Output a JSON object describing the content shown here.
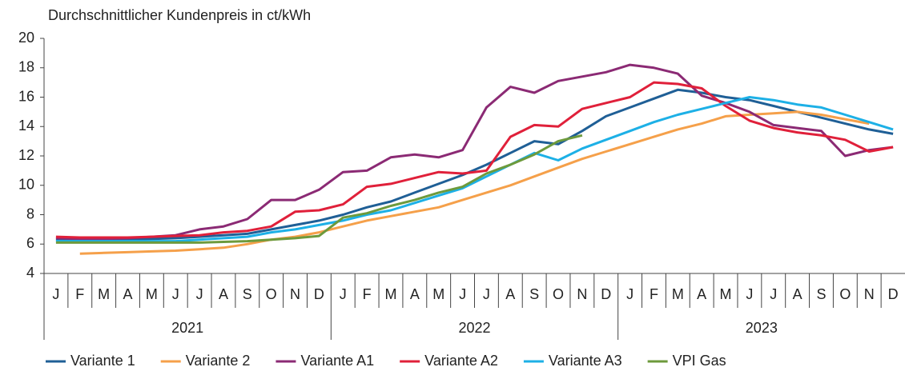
{
  "chart_data": {
    "type": "line",
    "y_label": "Durchschnittlicher Kundenpreis in ct/kWh",
    "categories": [
      "J",
      "F",
      "M",
      "A",
      "M",
      "J",
      "J",
      "A",
      "S",
      "O",
      "N",
      "D",
      "J",
      "F",
      "M",
      "A",
      "M",
      "J",
      "J",
      "A",
      "S",
      "O",
      "N",
      "D",
      "J",
      "F",
      "M",
      "A",
      "M",
      "J",
      "J",
      "A",
      "S",
      "O",
      "N",
      "D"
    ],
    "x_groups": [
      "2021",
      "2022",
      "2023"
    ],
    "ylim": [
      4,
      20
    ],
    "yticks": [
      4,
      6,
      8,
      10,
      12,
      14,
      16,
      18,
      20
    ],
    "grid": false,
    "legend": "bottom",
    "series": [
      {
        "name": "Variante 1",
        "color": "#1f5f96",
        "values": [
          6.3,
          6.3,
          6.3,
          6.3,
          6.35,
          6.4,
          6.5,
          6.6,
          6.7,
          7.0,
          7.3,
          7.6,
          8.0,
          8.5,
          8.9,
          9.5,
          10.1,
          10.7,
          11.4,
          12.2,
          13.0,
          12.8,
          13.7,
          14.7,
          15.3,
          15.9,
          16.5,
          16.3,
          16.0,
          15.8,
          15.4,
          15.0,
          14.6,
          14.2,
          13.8,
          13.5
        ]
      },
      {
        "name": "Variante 2",
        "color": "#f5a04a",
        "values": [
          null,
          5.35,
          5.4,
          5.45,
          5.5,
          5.55,
          5.65,
          5.75,
          6.0,
          6.3,
          6.5,
          6.8,
          7.2,
          7.6,
          7.9,
          8.2,
          8.5,
          9.0,
          9.5,
          10.0,
          10.6,
          11.2,
          11.8,
          12.3,
          12.8,
          13.3,
          13.8,
          14.2,
          14.7,
          14.8,
          14.9,
          15.0,
          14.8,
          14.5,
          14.2,
          null
        ]
      },
      {
        "name": "Variante A1",
        "color": "#8b2a74",
        "values": [
          6.4,
          6.35,
          6.35,
          6.4,
          6.5,
          6.6,
          7.0,
          7.2,
          7.7,
          9.0,
          9.0,
          9.7,
          10.9,
          11.0,
          11.9,
          12.1,
          11.9,
          12.4,
          15.3,
          16.7,
          16.3,
          17.1,
          17.4,
          17.7,
          18.2,
          18.0,
          17.6,
          16.1,
          15.6,
          15.0,
          14.1,
          13.9,
          13.7,
          12.0,
          12.4,
          12.6
        ]
      },
      {
        "name": "Variante A2",
        "color": "#e0203a",
        "values": [
          6.5,
          6.45,
          6.45,
          6.45,
          6.5,
          6.55,
          6.6,
          6.8,
          6.9,
          7.2,
          8.2,
          8.3,
          8.7,
          9.9,
          10.1,
          10.5,
          10.9,
          10.8,
          11.0,
          13.3,
          14.1,
          14.0,
          15.2,
          15.6,
          16.0,
          17.0,
          16.9,
          16.6,
          15.4,
          14.4,
          13.9,
          13.6,
          13.4,
          13.1,
          12.3,
          12.6
        ]
      },
      {
        "name": "Variante A3",
        "color": "#1db0e6",
        "values": [
          6.2,
          6.2,
          6.2,
          6.2,
          6.2,
          6.2,
          6.3,
          6.4,
          6.5,
          6.8,
          7.0,
          7.3,
          7.6,
          8.0,
          8.3,
          8.8,
          9.3,
          9.8,
          10.6,
          11.4,
          12.2,
          11.7,
          12.5,
          13.1,
          13.7,
          14.3,
          14.8,
          15.2,
          15.6,
          16.0,
          15.8,
          15.5,
          15.3,
          14.8,
          14.3,
          13.8
        ]
      },
      {
        "name": "VPI Gas",
        "color": "#6d9a3c",
        "values": [
          6.1,
          6.1,
          6.1,
          6.1,
          6.1,
          6.1,
          6.1,
          6.15,
          6.2,
          6.3,
          6.4,
          6.55,
          7.8,
          8.1,
          8.6,
          9.0,
          9.5,
          9.9,
          10.8,
          11.4,
          12.1,
          13.0,
          13.4,
          null,
          null,
          null,
          null,
          null,
          null,
          null,
          null,
          null,
          null,
          null,
          null,
          null
        ]
      }
    ]
  }
}
